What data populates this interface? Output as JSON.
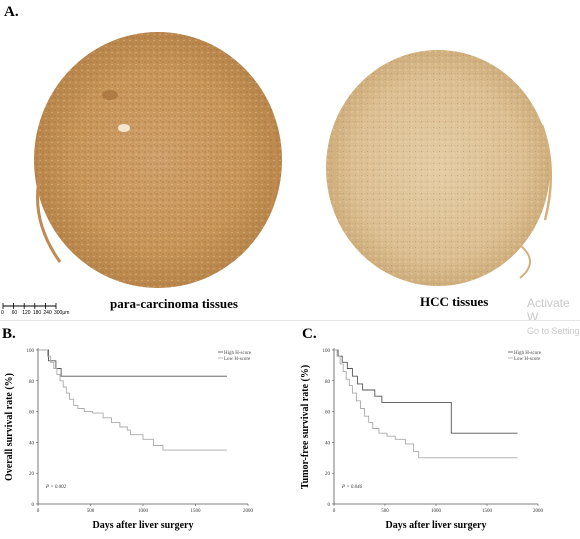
{
  "panel_a": {
    "label": "A.",
    "left_caption": "para-carcinoma tissues",
    "right_caption": "HCC tissues",
    "scalebar": [
      "0",
      "60",
      "120",
      "180",
      "240",
      "300μm"
    ],
    "watermark_line1": "Activate W",
    "watermark_line2": "Go to Setting"
  },
  "panel_b": {
    "label": "B."
  },
  "panel_c": {
    "label": "C."
  },
  "chart_data": [
    {
      "type": "line",
      "ylabel": "Overall survival rate (%)",
      "xlabel": "Days after liver surgery",
      "xlim": [
        0,
        2000
      ],
      "ylim": [
        0,
        100
      ],
      "xticks": [
        "0",
        "500",
        "1000",
        "1500",
        "2000"
      ],
      "yticks": [
        "0",
        "20",
        "40",
        "60",
        "80",
        "100"
      ],
      "annotation": "P = 0.002",
      "legend_position": "top-right",
      "series": [
        {
          "name": "High H-score",
          "style": "solid",
          "color": "#555555",
          "points": [
            [
              0,
              100
            ],
            [
              100,
              100
            ],
            [
              100,
              93
            ],
            [
              170,
              93
            ],
            [
              170,
              88
            ],
            [
              220,
              88
            ],
            [
              220,
              83
            ],
            [
              1800,
              83
            ]
          ]
        },
        {
          "name": "Low H-score",
          "style": "solid",
          "color": "#aaaaaa",
          "points": [
            [
              0,
              100
            ],
            [
              90,
              100
            ],
            [
              90,
              96
            ],
            [
              120,
              96
            ],
            [
              120,
              92
            ],
            [
              150,
              92
            ],
            [
              150,
              88
            ],
            [
              180,
              88
            ],
            [
              180,
              84
            ],
            [
              210,
              84
            ],
            [
              210,
              80
            ],
            [
              240,
              80
            ],
            [
              240,
              76
            ],
            [
              270,
              76
            ],
            [
              270,
              72
            ],
            [
              300,
              72
            ],
            [
              300,
              68
            ],
            [
              340,
              68
            ],
            [
              340,
              64
            ],
            [
              380,
              64
            ],
            [
              380,
              62
            ],
            [
              440,
              62
            ],
            [
              440,
              60
            ],
            [
              520,
              60
            ],
            [
              520,
              59
            ],
            [
              620,
              59
            ],
            [
              620,
              56
            ],
            [
              700,
              56
            ],
            [
              700,
              53
            ],
            [
              780,
              53
            ],
            [
              780,
              50
            ],
            [
              850,
              50
            ],
            [
              850,
              48
            ],
            [
              880,
              48
            ],
            [
              880,
              45
            ],
            [
              1000,
              45
            ],
            [
              1000,
              42
            ],
            [
              1100,
              42
            ],
            [
              1100,
              38
            ],
            [
              1190,
              38
            ],
            [
              1190,
              35
            ],
            [
              1800,
              35
            ]
          ]
        }
      ]
    },
    {
      "type": "line",
      "ylabel": "Tumor-free survival rate (%)",
      "xlabel": "Days after liver surgery",
      "xlim": [
        0,
        2000
      ],
      "ylim": [
        0,
        100
      ],
      "xticks": [
        "0",
        "500",
        "1000",
        "1500",
        "2000"
      ],
      "yticks": [
        "0",
        "20",
        "40",
        "60",
        "80",
        "100"
      ],
      "annotation": "P = 0.046",
      "legend_position": "top-right",
      "series": [
        {
          "name": "High H-score",
          "style": "solid",
          "color": "#555555",
          "points": [
            [
              0,
              100
            ],
            [
              40,
              100
            ],
            [
              40,
              96
            ],
            [
              80,
              96
            ],
            [
              80,
              92
            ],
            [
              130,
              92
            ],
            [
              130,
              88
            ],
            [
              180,
              88
            ],
            [
              180,
              83
            ],
            [
              230,
              83
            ],
            [
              230,
              78
            ],
            [
              280,
              78
            ],
            [
              280,
              74
            ],
            [
              400,
              74
            ],
            [
              400,
              70
            ],
            [
              470,
              70
            ],
            [
              470,
              66
            ],
            [
              1150,
              66
            ],
            [
              1150,
              46
            ],
            [
              1800,
              46
            ]
          ]
        },
        {
          "name": "Low H-score",
          "style": "solid",
          "color": "#aaaaaa",
          "points": [
            [
              0,
              100
            ],
            [
              30,
              100
            ],
            [
              30,
              96
            ],
            [
              60,
              96
            ],
            [
              60,
              91
            ],
            [
              90,
              91
            ],
            [
              90,
              86
            ],
            [
              120,
              86
            ],
            [
              120,
              81
            ],
            [
              150,
              81
            ],
            [
              150,
              77
            ],
            [
              180,
              77
            ],
            [
              180,
              72
            ],
            [
              220,
              72
            ],
            [
              220,
              67
            ],
            [
              260,
              67
            ],
            [
              260,
              62
            ],
            [
              300,
              62
            ],
            [
              300,
              57
            ],
            [
              340,
              57
            ],
            [
              340,
              53
            ],
            [
              380,
              53
            ],
            [
              380,
              49
            ],
            [
              440,
              49
            ],
            [
              440,
              46
            ],
            [
              520,
              46
            ],
            [
              520,
              44
            ],
            [
              600,
              44
            ],
            [
              600,
              42
            ],
            [
              700,
              42
            ],
            [
              700,
              39
            ],
            [
              780,
              39
            ],
            [
              780,
              34
            ],
            [
              830,
              34
            ],
            [
              830,
              30
            ],
            [
              1800,
              30
            ]
          ]
        }
      ]
    }
  ]
}
